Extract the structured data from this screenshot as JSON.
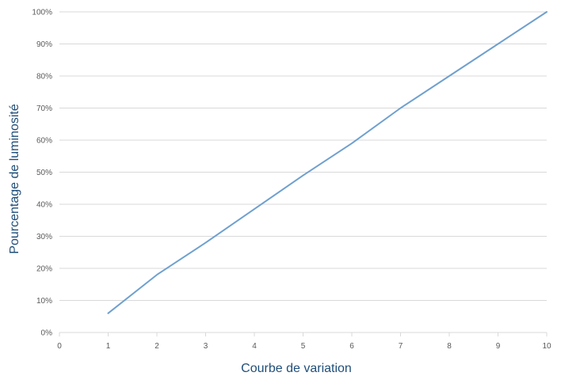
{
  "chart_data": {
    "type": "line",
    "title": "",
    "xlabel": "Courbe de variation",
    "ylabel": "Pourcentage de luminosité",
    "xlim": [
      0,
      10
    ],
    "ylim": [
      0,
      100
    ],
    "x_ticks": [
      "0",
      "1",
      "2",
      "3",
      "4",
      "5",
      "6",
      "7",
      "8",
      "9",
      "10"
    ],
    "y_ticks": [
      "0%",
      "10%",
      "20%",
      "30%",
      "40%",
      "50%",
      "60%",
      "70%",
      "80%",
      "90%",
      "100%"
    ],
    "grid": true,
    "series": [
      {
        "color": "#6fa0cf",
        "x": [
          1,
          2,
          3,
          4,
          5,
          6,
          7,
          8,
          9,
          10
        ],
        "y": [
          6,
          18,
          28,
          38.5,
          49,
          59,
          70,
          80,
          90,
          100
        ]
      }
    ]
  }
}
